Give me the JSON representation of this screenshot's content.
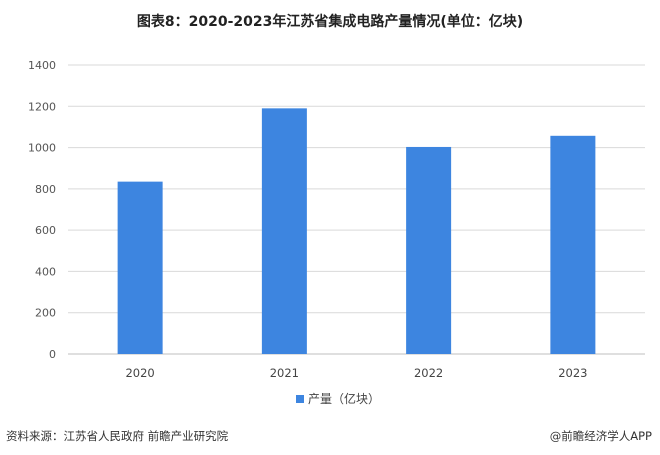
{
  "title": "图表8：2020-2023年江苏省集成电路产量情况(单位：亿块)",
  "chart_data": {
    "type": "bar",
    "categories": [
      "2020",
      "2021",
      "2022",
      "2023"
    ],
    "series": [
      {
        "name": "产量（亿块）",
        "values": [
          835,
          1190,
          1003,
          1057
        ]
      }
    ],
    "ylim": [
      0,
      1400
    ],
    "yticks": [
      "0",
      "200",
      "400",
      "600",
      "800",
      "1000",
      "1200",
      "1400"
    ],
    "grid": true,
    "legend": "bottom",
    "bar_color": "#3d85e0"
  },
  "footer": {
    "source": "资料来源：江苏省人民政府 前瞻产业研究院",
    "brand": "@前瞻经济学人APP"
  },
  "watermark": "前瞻产业研究院"
}
